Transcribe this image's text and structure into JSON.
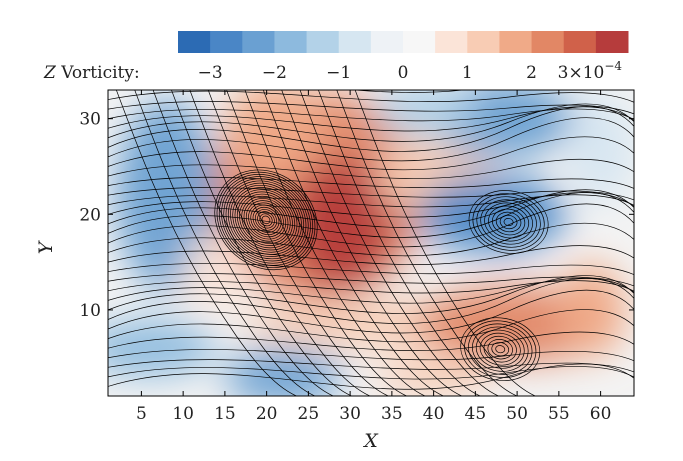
{
  "chart_data": {
    "type": "heatmap",
    "title": "",
    "xlabel": "X",
    "ylabel": "Y",
    "xlim": [
      1,
      64
    ],
    "ylim": [
      1,
      33
    ],
    "x_ticks": [
      5,
      10,
      15,
      20,
      25,
      30,
      35,
      40,
      45,
      50,
      55,
      60
    ],
    "y_ticks": [
      10,
      20,
      30
    ],
    "colorbar": {
      "label_prefix": "Z",
      "label_suffix": " Vorticity:",
      "range": [
        -0.00035,
        0.00035
      ],
      "tick_values": [
        -3,
        -2,
        -1,
        0,
        1,
        2,
        3
      ],
      "tick_labels": [
        "−3",
        "−2",
        "−1",
        "0",
        "1",
        "2",
        "3×10"
      ],
      "exponent": "−4",
      "colors": [
        "#2c6bb4",
        "#4a86c6",
        "#6aa0d2",
        "#8dbade",
        "#b3d2e8",
        "#d6e6f1",
        "#eef2f6",
        "#f7f7f7",
        "#fbe4d8",
        "#f8ccb4",
        "#f0aa88",
        "#e28765",
        "#d0614a",
        "#b63c3c"
      ]
    },
    "vortex_features": [
      {
        "x": 20,
        "y": 19.5,
        "sign": "positive",
        "strength": 3.2,
        "label": "anticlockwise vortex"
      },
      {
        "x": 49,
        "y": 19.3,
        "sign": "negative",
        "strength": -3.0,
        "label": "clockwise vortex"
      },
      {
        "x": 48,
        "y": 6,
        "sign": "positive",
        "strength": 2.4,
        "label": "spiral"
      }
    ],
    "grid": false,
    "overlay": "streamlines"
  },
  "colors": {
    "negative": "#2c6bb4",
    "positive": "#b63c3c",
    "streamline": "#000000"
  }
}
